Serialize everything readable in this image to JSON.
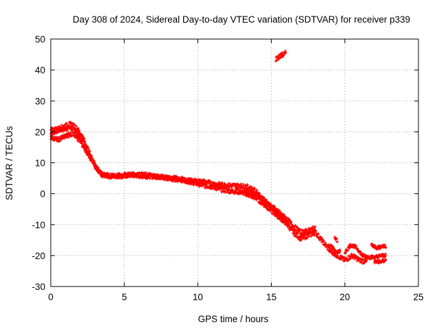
{
  "chart_data": {
    "type": "scatter",
    "title": "Day 308 of 2024, Sidereal Day-to-day VTEC variation (SDTVAR) for receiver p339",
    "xlabel": "GPS time / hours",
    "ylabel": "SDTVAR / TECUs",
    "xlim": [
      0,
      25
    ],
    "ylim": [
      -30,
      50
    ],
    "x_ticks": [
      0,
      5,
      10,
      15,
      20,
      25
    ],
    "y_ticks": [
      -30,
      -20,
      -10,
      0,
      10,
      20,
      30,
      40,
      50
    ],
    "x_tick_labels": [
      "0",
      "5",
      "10",
      "15",
      "20",
      "25"
    ],
    "y_tick_labels": [
      "-30",
      "-20",
      "-10",
      "0",
      "10",
      "20",
      "30",
      "40",
      "50"
    ],
    "grid": true,
    "marker_color": "#ff0000",
    "series": [
      {
        "name": "SDTVAR",
        "bands": [
          {
            "width": 1.6,
            "points": [
              [
                0.0,
                19.5
              ],
              [
                0.5,
                20.5
              ],
              [
                1.0,
                21.0
              ],
              [
                1.3,
                21.5
              ],
              [
                1.6,
                20.5
              ],
              [
                2.0,
                18.5
              ],
              [
                2.4,
                14.5
              ],
              [
                2.8,
                11.0
              ],
              [
                3.2,
                7.5
              ],
              [
                3.5,
                6.0
              ],
              [
                4.0,
                5.8
              ],
              [
                4.5,
                5.7
              ],
              [
                5.0,
                5.8
              ],
              [
                5.5,
                6.2
              ],
              [
                6.0,
                5.8
              ],
              [
                7.0,
                5.6
              ],
              [
                8.0,
                5.3
              ],
              [
                9.0,
                4.6
              ],
              [
                9.5,
                3.8
              ],
              [
                10.0,
                3.2
              ],
              [
                10.5,
                2.6
              ],
              [
                11.0,
                2.3
              ],
              [
                11.5,
                1.5
              ],
              [
                12.0,
                1.0
              ],
              [
                12.5,
                0.8
              ],
              [
                13.0,
                0.5
              ],
              [
                13.5,
                -0.5
              ],
              [
                14.0,
                -1.5
              ],
              [
                14.5,
                -3.5
              ],
              [
                15.0,
                -5.5
              ],
              [
                15.5,
                -7.5
              ],
              [
                16.0,
                -9.5
              ],
              [
                16.5,
                -12.5
              ],
              [
                17.0,
                -14.5
              ],
              [
                17.5,
                -13.5
              ],
              [
                18.0,
                -12.5
              ],
              [
                18.5,
                -15.5
              ],
              [
                19.0,
                -18.5
              ],
              [
                19.5,
                -20.0
              ],
              [
                20.0,
                -21.5
              ],
              [
                20.5,
                -20.0
              ],
              [
                21.0,
                -21.5
              ],
              [
                21.5,
                -22.0
              ]
            ]
          },
          {
            "width": 1.6,
            "points": [
              [
                0.0,
                20.5
              ],
              [
                0.5,
                21.0
              ],
              [
                1.0,
                22.0
              ],
              [
                1.4,
                22.5
              ],
              [
                1.8,
                21.0
              ],
              [
                2.2,
                18.0
              ],
              [
                2.6,
                13.5
              ],
              [
                3.0,
                9.5
              ],
              [
                3.4,
                6.5
              ],
              [
                4.0,
                5.5
              ],
              [
                5.0,
                6.0
              ],
              [
                6.0,
                6.2
              ],
              [
                7.0,
                5.8
              ],
              [
                8.0,
                5.0
              ],
              [
                9.0,
                4.3
              ],
              [
                10.0,
                4.0
              ],
              [
                10.5,
                3.8
              ],
              [
                11.0,
                3.2
              ],
              [
                12.0,
                2.7
              ],
              [
                13.0,
                2.5
              ],
              [
                13.5,
                2.0
              ],
              [
                14.0,
                0.5
              ],
              [
                14.5,
                -2.0
              ],
              [
                15.0,
                -4.0
              ],
              [
                15.5,
                -6.0
              ],
              [
                16.0,
                -8.0
              ],
              [
                16.5,
                -10.5
              ],
              [
                17.0,
                -12.5
              ],
              [
                17.5,
                -12.0
              ],
              [
                18.0,
                -11.0
              ]
            ]
          },
          {
            "width": 1.6,
            "points": [
              [
                0.0,
                18.0
              ],
              [
                0.5,
                17.5
              ],
              [
                1.0,
                18.5
              ],
              [
                1.5,
                19.5
              ],
              [
                2.0,
                17.0
              ],
              [
                2.5,
                13.0
              ],
              [
                3.0,
                9.0
              ],
              [
                3.5,
                6.0
              ]
            ]
          },
          {
            "width": 1.6,
            "points": [
              [
                13.0,
                1.0
              ],
              [
                13.5,
                0.5
              ],
              [
                14.0,
                -0.5
              ],
              [
                14.5,
                -2.5
              ],
              [
                15.0,
                -4.5
              ],
              [
                15.5,
                -7.0
              ],
              [
                16.0,
                -9.5
              ]
            ]
          },
          {
            "width": 1.6,
            "points": [
              [
                15.3,
                43.5
              ],
              [
                15.6,
                44.5
              ],
              [
                16.0,
                45.5
              ]
            ]
          },
          {
            "width": 1.2,
            "points": [
              [
                20.0,
                -19.0
              ],
              [
                20.4,
                -16.5
              ],
              [
                20.8,
                -17.5
              ],
              [
                21.2,
                -20.0
              ],
              [
                21.7,
                -20.5
              ],
              [
                22.1,
                -20.5
              ],
              [
                22.5,
                -20.0
              ],
              [
                22.8,
                -20.0
              ]
            ]
          },
          {
            "width": 1.2,
            "points": [
              [
                21.8,
                -16.5
              ],
              [
                22.2,
                -17.5
              ],
              [
                22.5,
                -17.0
              ],
              [
                22.8,
                -17.0
              ]
            ]
          },
          {
            "width": 1.2,
            "points": [
              [
                18.9,
                -16.5
              ],
              [
                19.2,
                -17.5
              ],
              [
                19.4,
                -19.0
              ],
              [
                19.7,
                -18.5
              ]
            ]
          },
          {
            "width": 1.2,
            "points": [
              [
                22.0,
                -22.0
              ],
              [
                22.4,
                -22.0
              ],
              [
                22.8,
                -21.5
              ]
            ]
          },
          {
            "width": 1.0,
            "points": [
              [
                19.3,
                -14.0
              ],
              [
                19.5,
                -15.5
              ]
            ]
          }
        ]
      }
    ]
  }
}
